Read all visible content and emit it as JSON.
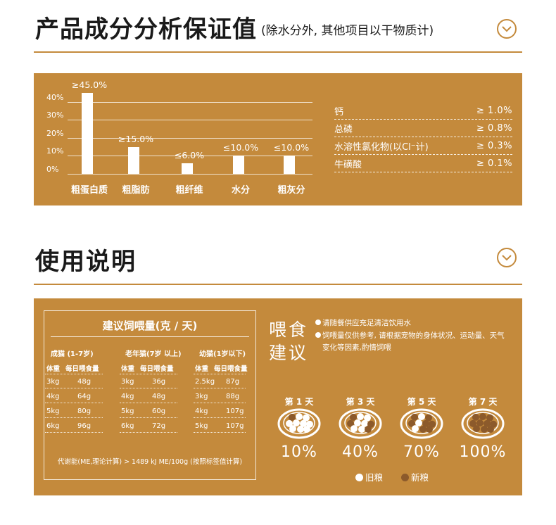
{
  "section1": {
    "title": "产品成分分析保证值",
    "subtitle": "(除水分外, 其他项目以干物质计)",
    "icon": "chevron-down-circle-icon"
  },
  "chart_data": {
    "type": "bar",
    "categories": [
      "粗蛋白质",
      "粗脂肪",
      "粗纤维",
      "水分",
      "粗灰分"
    ],
    "values": [
      45.0,
      15.0,
      6.0,
      10.0,
      10.0
    ],
    "data_labels": [
      "≥45.0%",
      "≥15.0%",
      "≤6.0%",
      "≤10.0%",
      "≤10.0%"
    ],
    "ytick_labels": [
      "40%",
      "30%",
      "20%",
      "10%",
      "0%"
    ],
    "yticks": [
      40,
      30,
      20,
      10,
      0
    ],
    "ylim": [
      0,
      47
    ],
    "grid": true,
    "colors": {
      "panel": "#c48a3c",
      "bar": "#ffffff"
    }
  },
  "minerals": [
    {
      "name": "钙",
      "value": "≥ 1.0%"
    },
    {
      "name": "总磷",
      "value": "≥ 0.8%"
    },
    {
      "name": "水溶性氯化物(以Cl⁻计)",
      "value": "≥ 0.3%"
    },
    {
      "name": "牛磺酸",
      "value": "≥ 0.1%"
    }
  ],
  "section2": {
    "title": "使用说明",
    "icon": "chevron-down-circle-icon"
  },
  "feeding": {
    "title": "建议饲喂量(克 / 天)",
    "groups": [
      {
        "name": "成猫 (1-7岁)",
        "col1": "体重",
        "col2": "每日喂食量",
        "rows": [
          [
            "3kg",
            "48g"
          ],
          [
            "4kg",
            "64g"
          ],
          [
            "5kg",
            "80g"
          ],
          [
            "6kg",
            "96g"
          ]
        ]
      },
      {
        "name": "老年猫(7岁 以上)",
        "col1": "体重",
        "col2": "每日喂食量",
        "rows": [
          [
            "3kg",
            "36g"
          ],
          [
            "4kg",
            "48g"
          ],
          [
            "5kg",
            "60g"
          ],
          [
            "6kg",
            "72g"
          ]
        ]
      },
      {
        "name": "幼猫(1岁以下)",
        "col1": "体重",
        "col2": "每日喂食量",
        "rows": [
          [
            "2.5kg",
            "87g"
          ],
          [
            "3kg",
            "88g"
          ],
          [
            "4kg",
            "107g"
          ],
          [
            "5kg",
            "107g"
          ]
        ]
      }
    ],
    "energy_note": "代谢能(ME,理论计算) > 1489 kJ ME/100g (按照标签值计算)"
  },
  "advice": {
    "heading_line1": "喂食",
    "heading_line2": "建议",
    "note1": "请随餐供应充足清洁饮用水",
    "note2_line1": "饲喂量仅供参考, 请根据宠物的身体状况、运动量、天气",
    "note2_line2": "变化等因素,酌情饲喂"
  },
  "transition": {
    "days": [
      {
        "label": "第 1 天",
        "percent": "10%",
        "new_fraction": 0.1
      },
      {
        "label": "第 3 天",
        "percent": "40%",
        "new_fraction": 0.4
      },
      {
        "label": "第 5 天",
        "percent": "70%",
        "new_fraction": 0.7
      },
      {
        "label": "第 7 天",
        "percent": "100%",
        "new_fraction": 1.0
      }
    ],
    "legend_old": "旧粮",
    "legend_new": "新粮",
    "colors": {
      "old": "#ffffff",
      "new": "#8c5a2b"
    }
  }
}
